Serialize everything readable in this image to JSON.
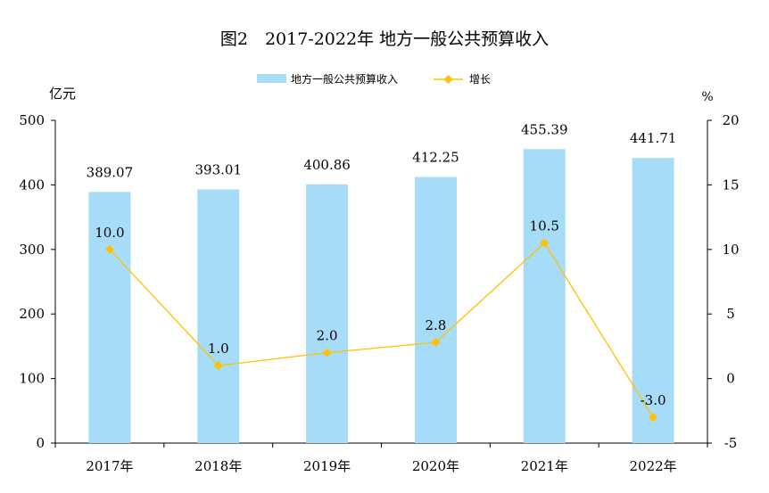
{
  "chart_data": {
    "type": "bar",
    "title": "图2　2017-2022年 地方一般公共预算收入",
    "categories": [
      "2017年",
      "2018年",
      "2019年",
      "2020年",
      "2021年",
      "2022年"
    ],
    "series": [
      {
        "name": "地方一般公共预算收入",
        "type": "bar",
        "axis": "left",
        "color": "#a6dcf7",
        "values": [
          389.07,
          393.01,
          400.86,
          412.25,
          455.39,
          441.71
        ],
        "labels": [
          "389.07",
          "393.01",
          "400.86",
          "412.25",
          "455.39",
          "441.71"
        ]
      },
      {
        "name": "增长",
        "type": "line",
        "axis": "right",
        "color": "#ffc000",
        "values": [
          10.0,
          1.0,
          2.0,
          2.8,
          10.5,
          -3.0
        ],
        "labels": [
          "10.0",
          "1.0",
          "2.0",
          "2.8",
          "10.5",
          "-3.0"
        ]
      }
    ],
    "ylabel": "亿元",
    "ylim": [
      0,
      500
    ],
    "yticks": [
      "0",
      "100",
      "200",
      "300",
      "400",
      "500"
    ],
    "y2label": "%",
    "y2lim": [
      -5,
      20
    ],
    "y2ticks": [
      "-5",
      "0",
      "5",
      "10",
      "15",
      "20"
    ],
    "legend": "top-center",
    "grid": false
  }
}
